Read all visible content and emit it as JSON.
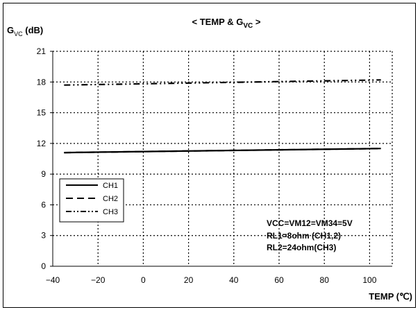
{
  "chart_data": {
    "type": "line",
    "title_main": "< TEMP & G",
    "title_sub": "VC",
    "title_end": " >",
    "ylabel_main": "G",
    "ylabel_sub": "VC",
    "ylabel_unit": " (dB)",
    "xlabel": "TEMP (℃)",
    "xlim": [
      -40,
      110
    ],
    "ylim": [
      0,
      21
    ],
    "xticks": [
      -40,
      -20,
      0,
      20,
      40,
      60,
      80,
      100
    ],
    "xtick_labels": [
      "−40",
      "−20",
      "0",
      "20",
      "40",
      "60",
      "80",
      "100"
    ],
    "yticks": [
      0,
      3,
      6,
      9,
      12,
      15,
      18,
      21
    ],
    "ytick_labels": [
      "0",
      "3",
      "6",
      "9",
      "12",
      "15",
      "18",
      "21"
    ],
    "grid": true,
    "legend_position": "left-middle",
    "series": [
      {
        "name": "CH1",
        "style": "solid",
        "x": [
          -35,
          105
        ],
        "y": [
          11.1,
          11.5
        ]
      },
      {
        "name": "CH2",
        "style": "dashed",
        "x": [
          -35,
          105
        ],
        "y": [
          11.1,
          11.5
        ]
      },
      {
        "name": "CH3",
        "style": "dashdot",
        "x": [
          -35,
          105
        ],
        "y": [
          17.7,
          18.2
        ]
      }
    ],
    "annotations": [
      "VCC=VM12=VM34=5V",
      "RL1=8ohm (CH1,2)",
      "RL2=24ohm(CH3)"
    ]
  }
}
